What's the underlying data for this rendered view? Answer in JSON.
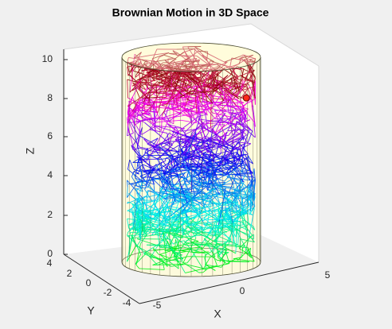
{
  "chart_data": {
    "type": "line",
    "title": "Brownian Motion in 3D Space",
    "xlabel": "X",
    "ylabel": "Y",
    "zlabel": "Z",
    "xlim": [
      -5,
      5
    ],
    "ylim": [
      -4,
      4
    ],
    "zlim": [
      0,
      10
    ],
    "x_ticks": [
      "-5",
      "0",
      "5"
    ],
    "y_ticks": [
      "4",
      "2",
      "0",
      "-2",
      "-4"
    ],
    "z_ticks": [
      "0",
      "2",
      "4",
      "6",
      "8",
      "10"
    ],
    "grid": false,
    "container": {
      "shape": "cylinder",
      "radius": 4,
      "height": 10,
      "color": "#fffbd8"
    },
    "colormap": "hsv",
    "marker": {
      "x": 3.3,
      "y": -0.5,
      "z": 8.0,
      "color": "#ff2a1a"
    }
  }
}
